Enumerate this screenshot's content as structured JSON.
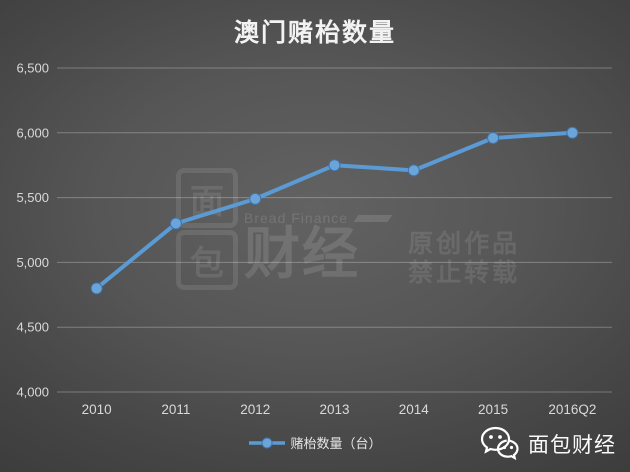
{
  "title": "澳门赌枱数量",
  "chart_data": {
    "type": "line",
    "title": "澳门赌枱数量",
    "categories": [
      "2010",
      "2011",
      "2012",
      "2013",
      "2014",
      "2015",
      "2016Q2"
    ],
    "series": [
      {
        "name": "赌枱数量（台）",
        "values": [
          4800,
          5300,
          5490,
          5750,
          5710,
          5960,
          6000
        ]
      }
    ],
    "xlabel": "",
    "ylabel": "",
    "ylim": [
      4000,
      6500
    ],
    "yticks": [
      {
        "value": 6500,
        "label": "6,500"
      },
      {
        "value": 6000,
        "label": "6,000"
      },
      {
        "value": 5500,
        "label": "5,500"
      },
      {
        "value": 5000,
        "label": "5,000"
      },
      {
        "value": 4500,
        "label": "4,500"
      },
      {
        "value": 4000,
        "label": "4,000"
      }
    ],
    "grid": true,
    "legend_position": "bottom",
    "line_color": "#5b9bd5",
    "marker_color": "#6ba4d8",
    "marker_edge_color": "#3f74ad",
    "gridline_color": "rgba(255,255,255,0.28)",
    "axis_text_color": "#d9d9d9"
  },
  "legend": {
    "label": "赌枱数量（台）"
  },
  "watermark": {
    "logo_char_top": "面",
    "logo_char_bottom": "包",
    "brand_en": "Bread Finance",
    "brand_cn": "财经",
    "notice_line1": "原创作品",
    "notice_line2": "禁止转载"
  },
  "footer": {
    "brand": "面包财经",
    "icon": "wechat-icon"
  },
  "colors": {
    "background_center": "#616161",
    "background_edge": "#383838",
    "title_text": "#f2f2f2"
  }
}
